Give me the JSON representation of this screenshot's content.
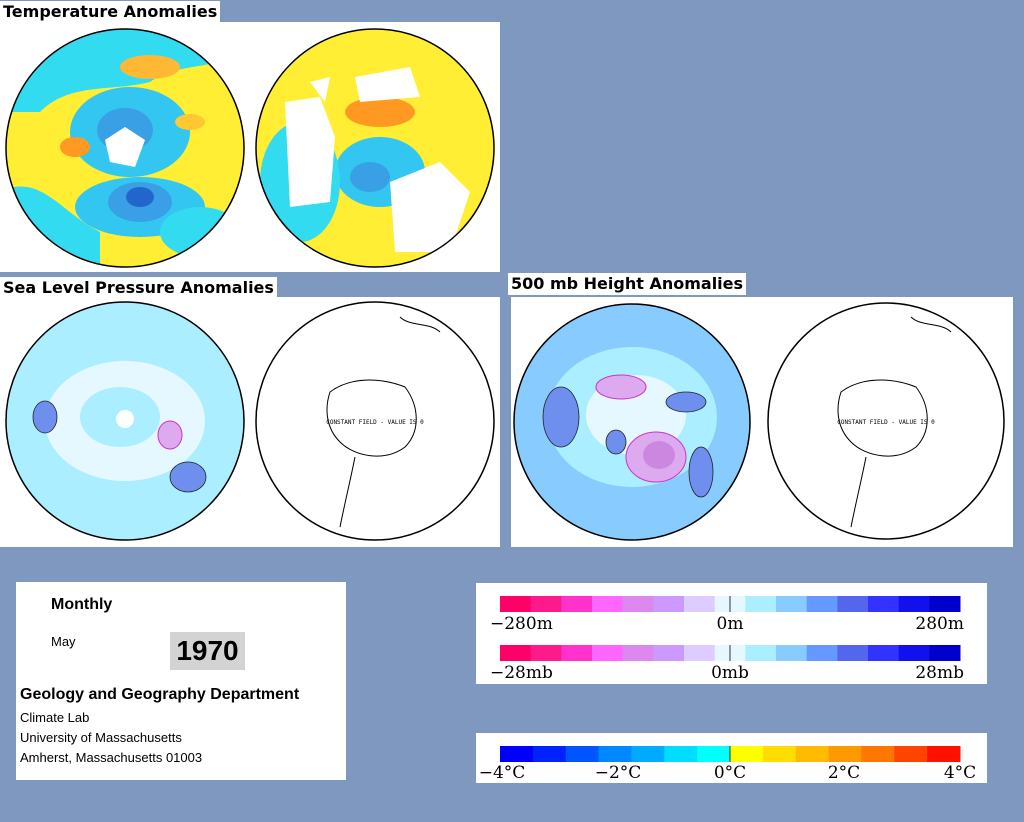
{
  "sections": {
    "temperature": "Temperature Anomalies",
    "slp": "Sea Level Pressure Anomalies",
    "height500": "500 mb Height Anomalies"
  },
  "map_notes": {
    "slp_south": "CONSTANT FIELD - VALUE IS 0",
    "height_south": "CONSTANT FIELD - VALUE IS 0"
  },
  "info": {
    "frequency": "Monthly",
    "month": "May",
    "year": "1970",
    "department": "Geology and Geography Department",
    "line1": "Climate Lab",
    "line2": "University of Massachusetts",
    "line3": "Amherst, Massachusetts 01003"
  },
  "legends": {
    "height": {
      "min": "−280m",
      "mid": "0m",
      "max": "280m"
    },
    "pressure": {
      "min": "−28mb",
      "mid": "0mb",
      "max": "28mb"
    },
    "temperature": {
      "t1": "−4°C",
      "t2": "−2°C",
      "t3": "0°C",
      "t4": "2°C",
      "t5": "4°C"
    }
  },
  "colors": {
    "anomaly_scale": [
      "#ff0066",
      "#ff1a8c",
      "#ff33cc",
      "#ff66ff",
      "#dd88ee",
      "#cc99ff",
      "#ddccff",
      "#e6f8ff",
      "#aaeeff",
      "#88ccff",
      "#6699ff",
      "#5566ee",
      "#3333ff",
      "#1111ee",
      "#0000cc"
    ],
    "temperature_scale": [
      "#0000ff",
      "#0022ff",
      "#0055ff",
      "#0088ff",
      "#00aaff",
      "#00ddff",
      "#00ffff",
      "#ffff00",
      "#ffdd00",
      "#ffbb00",
      "#ff9900",
      "#ff7700",
      "#ff4400",
      "#ff1100"
    ],
    "page_background": "#7f98bf"
  }
}
